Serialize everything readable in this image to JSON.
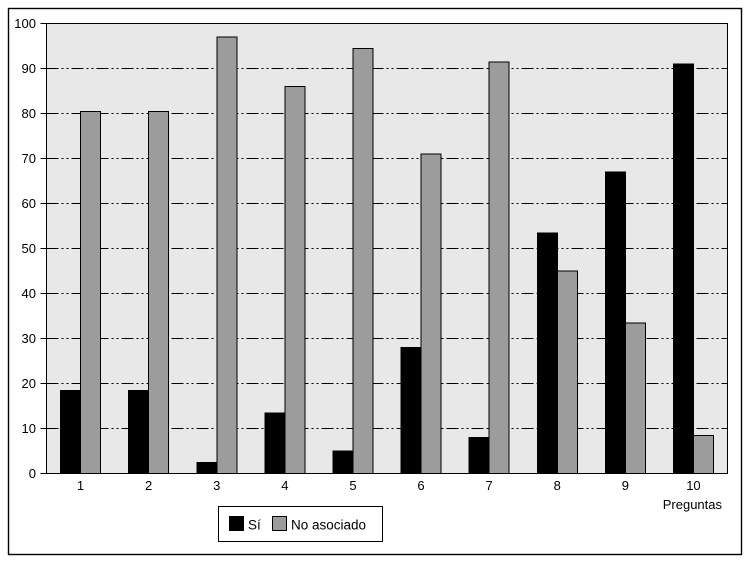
{
  "figure": {
    "background": "#ffffff",
    "border_color": "#000000",
    "plot_background": "#e8e8e8"
  },
  "chart_data": {
    "type": "bar",
    "title": "",
    "xlabel": "Preguntas",
    "ylabel": "",
    "categories": [
      "1",
      "2",
      "3",
      "4",
      "5",
      "6",
      "7",
      "8",
      "9",
      "10"
    ],
    "series": [
      {
        "name": "Sí",
        "color": "#000000",
        "values": [
          18.5,
          18.5,
          2.5,
          13.5,
          5,
          28,
          8,
          53.5,
          67,
          91
        ]
      },
      {
        "name": "No asociado",
        "color": "#9c9c9c",
        "values": [
          80.5,
          80.5,
          97,
          86,
          94.5,
          71,
          91.5,
          45,
          33.5,
          8.5
        ]
      }
    ],
    "ylim": [
      0,
      100
    ],
    "yticks": [
      0,
      10,
      20,
      30,
      40,
      50,
      60,
      70,
      80,
      90,
      100
    ],
    "grid": {
      "horizontal": true,
      "style": "dash-dot-dot",
      "color": "#000000"
    },
    "bar_outline_color": "#000000",
    "legend_position": "bottom-center"
  }
}
